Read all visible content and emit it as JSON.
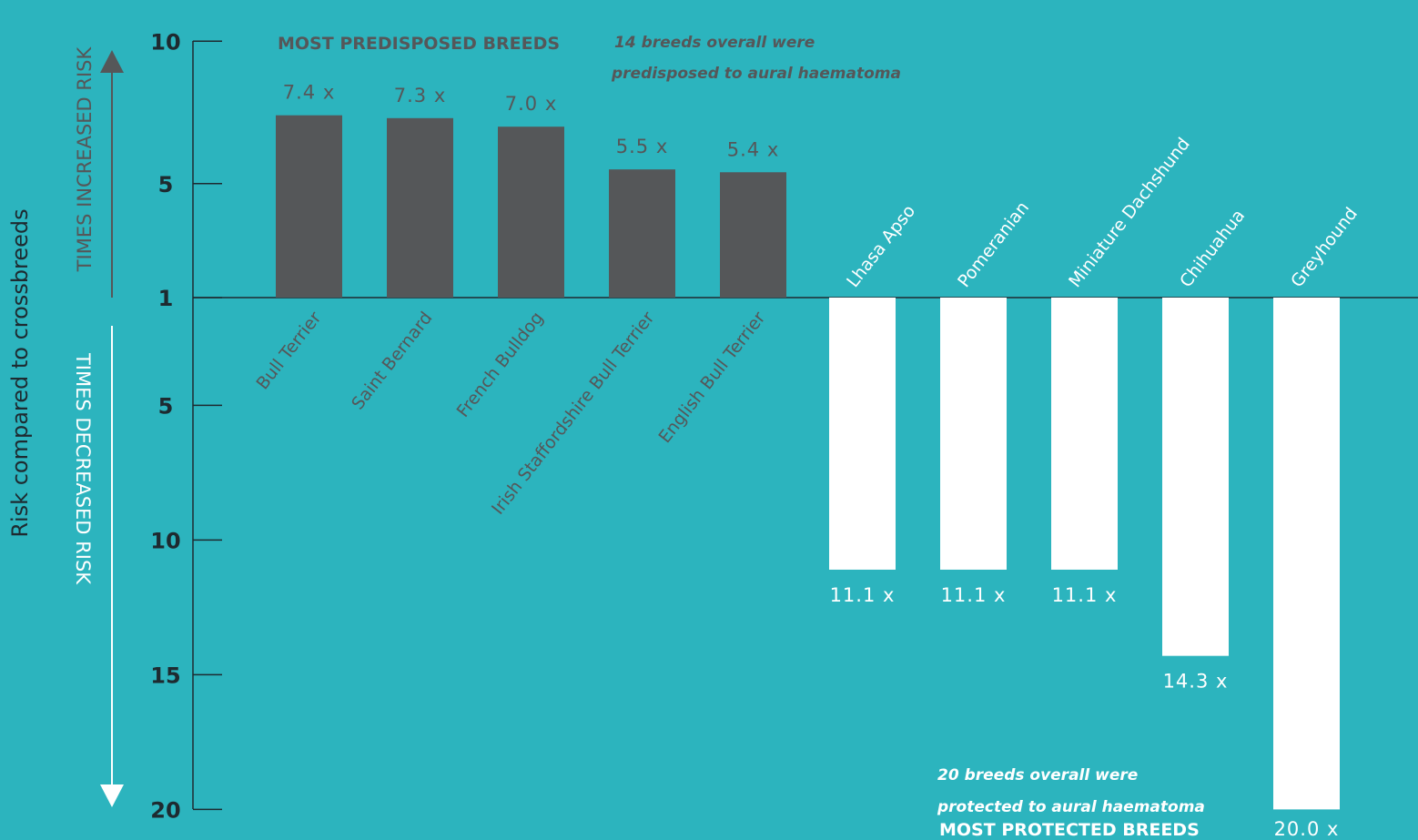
{
  "colors": {
    "background": "#2cb4be",
    "predisposed_bar": "#555759",
    "protected_bar": "#ffffff",
    "axis": "#1e2a30"
  },
  "header": {
    "title_predisposed": "MOST PREDISPOSED BREEDS",
    "note_predisposed_line1": "14 breeds overall were",
    "note_predisposed_line2": "predisposed to aural haematoma",
    "title_protected": "MOST PROTECTED BREEDS",
    "note_protected_line1": "20 breeds overall were",
    "note_protected_line2": "protected to aural haematoma"
  },
  "chart_data": {
    "type": "bar",
    "ylabel": "Risk compared to crossbreeds",
    "y_upper_label": "TIMES INCREASED RISK",
    "y_lower_label": "TIMES DECREASED RISK",
    "upper_range": [
      1,
      10
    ],
    "lower_range": [
      1,
      20
    ],
    "ticks_upper": [
      "10",
      "5"
    ],
    "tick_baseline": "1",
    "ticks_lower": [
      "5",
      "10",
      "15",
      "20"
    ],
    "tick_values_upper": [
      10,
      5
    ],
    "tick_values_lower": [
      5,
      10,
      15,
      20
    ],
    "grid": false,
    "predisposed": {
      "categories": [
        "Bull Terrier",
        "Saint Bernard",
        "French Bulldog",
        "Irish Staffordshire Bull Terrier",
        "English Bull Terrier"
      ],
      "values": [
        7.4,
        7.3,
        7.0,
        5.5,
        5.4
      ],
      "labels": [
        "7.4 x",
        "7.3 x",
        "7.0 x",
        "5.5 x",
        "5.4 x"
      ]
    },
    "protected": {
      "categories": [
        "Lhasa Apso",
        "Pomeranian",
        "Miniature Dachshund",
        "Chihuahua",
        "Greyhound"
      ],
      "values": [
        11.1,
        11.1,
        11.1,
        14.3,
        20.0
      ],
      "labels": [
        "11.1 x",
        "11.1 x",
        "11.1 x",
        "14.3 x",
        "20.0 x"
      ]
    }
  }
}
